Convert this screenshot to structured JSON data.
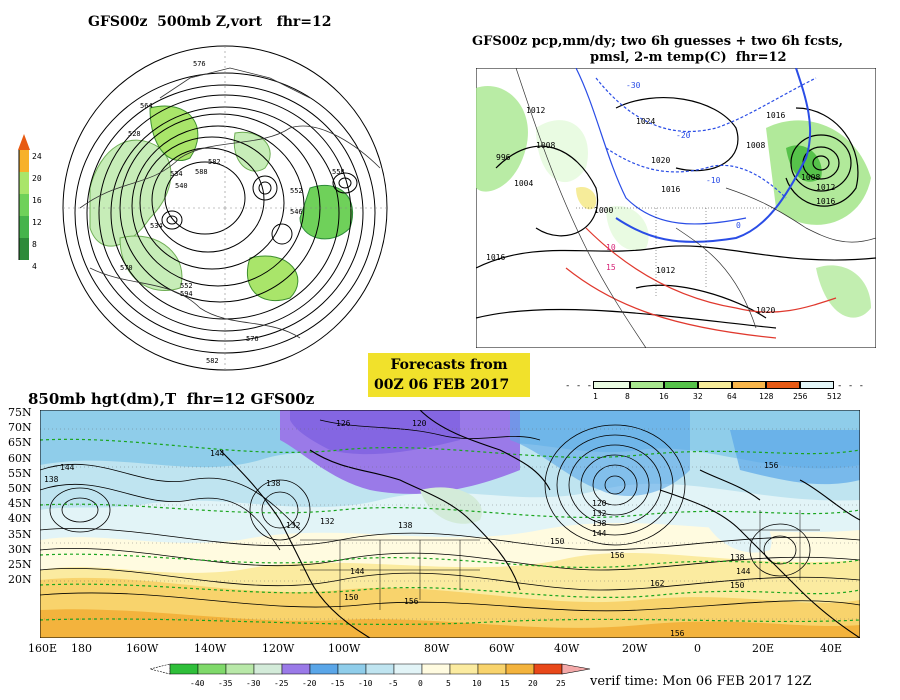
{
  "panel_top_left": {
    "title": "GFS00z  500mb Z,vort   fhr=12",
    "scale_labels": [
      "24",
      "20",
      "16",
      "12",
      "8",
      "4"
    ],
    "scale_colors": [
      "#e75a12",
      "#f7b12a",
      "#a9e56a",
      "#6fd15a",
      "#46b44c",
      "#2e8b3a"
    ],
    "contour_labels": [
      "576",
      "564",
      "582",
      "588",
      "558",
      "534",
      "540",
      "552",
      "528",
      "546",
      "570",
      "576",
      "552",
      "534",
      "594",
      "582"
    ]
  },
  "panel_top_right": {
    "title_line1": "GFS00z pcp,mm/dy; two 6h guesses + two 6h fcsts,",
    "title_line2": "pmsl, 2-m temp(C)  fhr=12",
    "isobar_labels": [
      "1012",
      "1008",
      "1004",
      "996",
      "1000",
      "1024",
      "1020",
      "1016",
      "1016",
      "1008",
      "1012",
      "1016",
      "1012",
      "1020",
      "1008",
      "1016"
    ],
    "temp_labels": [
      "-30",
      "-20",
      "-10",
      "0",
      "10",
      "15"
    ]
  },
  "center_box": {
    "line1": "Forecasts from",
    "line2": "00Z 06 FEB 2017"
  },
  "precip_legend": {
    "labels": [
      "1",
      "8",
      "16",
      "32",
      "64",
      "128",
      "256",
      "512"
    ],
    "colors": [
      "#e9fbe2",
      "#a8e78f",
      "#56c24a",
      "#f6ec9a",
      "#f9b64b",
      "#e65a16",
      "#e3f6f8"
    ]
  },
  "panel_bottom": {
    "title": "850mb hgt(dm),T  fhr=12 GFS00z",
    "lat_labels": [
      "75N",
      "70N",
      "65N",
      "60N",
      "55N",
      "50N",
      "45N",
      "40N",
      "35N",
      "30N",
      "25N",
      "20N"
    ],
    "lon_labels": [
      "160E",
      "180",
      "160W",
      "140W",
      "120W",
      "100W",
      "80W",
      "60W",
      "40W",
      "20W",
      "0",
      "20E",
      "40E"
    ],
    "height_labels": [
      "144",
      "138",
      "144",
      "138",
      "132",
      "126",
      "120",
      "138",
      "132",
      "144",
      "150",
      "156",
      "132",
      "138",
      "144",
      "150",
      "156",
      "162",
      "156",
      "120",
      "138",
      "144",
      "150",
      "156"
    ],
    "temp_colors": [
      "#2fbf3a",
      "#7fd96a",
      "#b8e8a8",
      "#d3ebd9",
      "#9a7ae8",
      "#5aa6e8",
      "#8fcdea",
      "#bfe4f0",
      "#e2f4f7",
      "#fffbe0",
      "#fbeba0",
      "#f8d36c",
      "#f3b33d",
      "#ec8a1e",
      "#e8481a"
    ],
    "temp_labels": [
      "-40",
      "-35",
      "-30",
      "-25",
      "-20",
      "-15",
      "-10",
      "-5",
      "0",
      "5",
      "10",
      "15",
      "20",
      "25"
    ]
  },
  "verif_text": "verif time: Mon 06 FEB 2017 12Z"
}
